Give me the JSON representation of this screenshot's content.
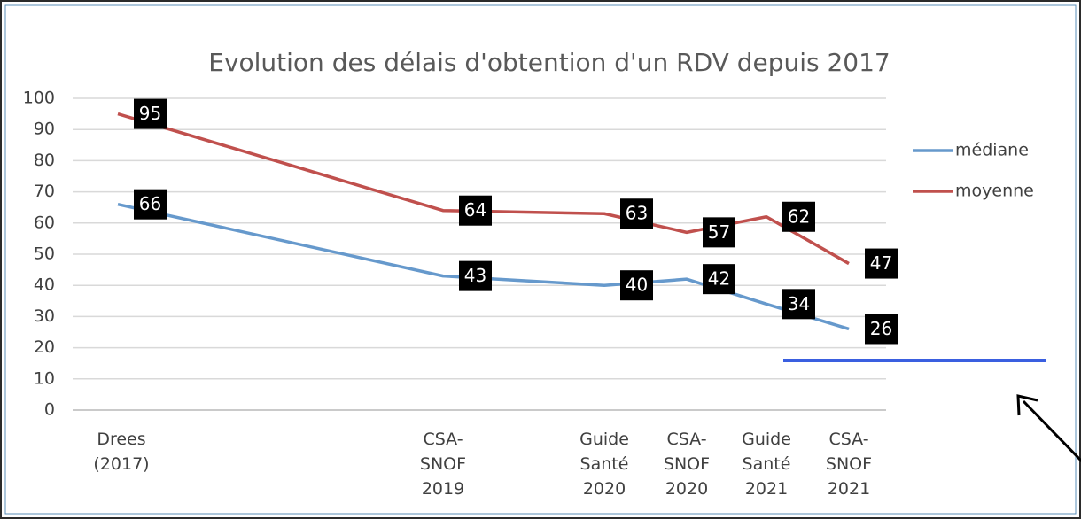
{
  "chart_data": {
    "type": "line",
    "title": "Evolution des délais d'obtention d'un RDV depuis 2017",
    "categories": [
      "Drees\n(2017)",
      "CSA-\nSNOF\n2019",
      "Guide\nSanté\n2020",
      "CSA-\nSNOF\n2020",
      "Guide\nSanté\n2021",
      "CSA-\nSNOF\n2021"
    ],
    "series": [
      {
        "name": "médiane",
        "color": "#6699cc",
        "values": [
          66,
          43,
          40,
          42,
          34,
          26
        ]
      },
      {
        "name": "moyenne",
        "color": "#c0504d",
        "values": [
          95,
          64,
          63,
          57,
          62,
          47
        ]
      }
    ],
    "ylim": [
      0,
      100
    ],
    "yticks": [
      0,
      10,
      20,
      30,
      40,
      50,
      60,
      70,
      80,
      90,
      100
    ],
    "grid": true,
    "legend": "right"
  }
}
